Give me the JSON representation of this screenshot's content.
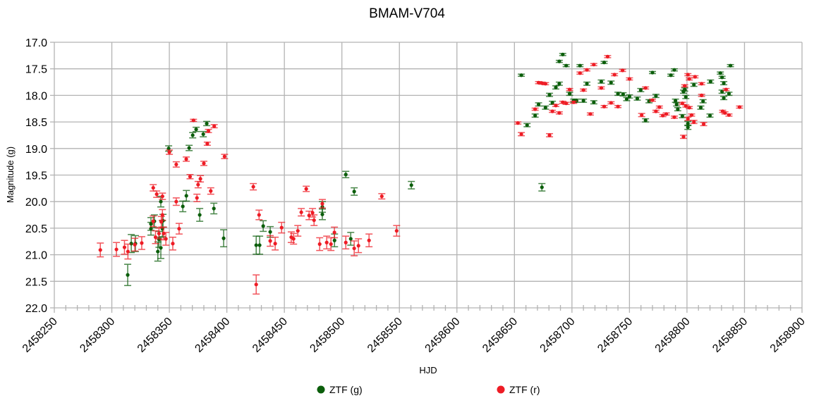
{
  "chart_data": {
    "type": "scatter",
    "title": "BMAM-V704",
    "xlabel": "HJD",
    "ylabel": "Magnitude (g)",
    "xlim": [
      2458250,
      2458900
    ],
    "ylim": [
      17.0,
      22.0
    ],
    "y_inverted": true,
    "grid": true,
    "legend_position": "bottom",
    "x_ticks": [
      "2458250",
      "2458300",
      "2458350",
      "2458400",
      "2458450",
      "2458500",
      "2458550",
      "2458600",
      "2458650",
      "2458700",
      "2458750",
      "2458800",
      "2458850",
      "2458900"
    ],
    "y_ticks": [
      "17.0",
      "17.5",
      "18.0",
      "18.5",
      "19.0",
      "19.5",
      "20.0",
      "20.5",
      "21.0",
      "21.5",
      "22.0"
    ],
    "series": [
      {
        "name": "ZTF (g)",
        "color": "#0b5e0b",
        "points": [
          [
            2458313.8,
            21.38,
            0.2
          ],
          [
            2458316.9,
            20.79,
            0.17
          ],
          [
            2458320.5,
            20.79,
            0.15
          ],
          [
            2458334,
            20.42,
            0.12
          ],
          [
            2458334,
            20.51,
            0.12
          ],
          [
            2458337,
            20.37,
            0.12
          ],
          [
            2458340,
            20.94,
            0.18
          ],
          [
            2458342.6,
            20.87,
            0.2
          ],
          [
            2458341,
            20.71,
            0.15
          ],
          [
            2458342.6,
            20.0,
            0.1
          ],
          [
            2458344.5,
            20.36,
            0.12
          ],
          [
            2458344,
            20.51,
            0.15
          ],
          [
            2458349.4,
            19.0,
            0.05
          ],
          [
            2458361.7,
            20.09,
            0.1
          ],
          [
            2458364.8,
            19.89,
            0.1
          ],
          [
            2458367.2,
            18.99,
            0.05
          ],
          [
            2458370.3,
            18.75,
            0.05
          ],
          [
            2458373.3,
            18.64,
            0.04
          ],
          [
            2458376.4,
            20.25,
            0.12
          ],
          [
            2458379.5,
            18.73,
            0.05
          ],
          [
            2458382.5,
            18.53,
            0.04
          ],
          [
            2458388.7,
            20.13,
            0.1
          ],
          [
            2458397.2,
            20.69,
            0.16
          ],
          [
            2458425.5,
            20.82,
            0.17
          ],
          [
            2458428.5,
            20.82,
            0.17
          ],
          [
            2458431.6,
            20.46,
            0.1
          ],
          [
            2458437.7,
            20.57,
            0.1
          ],
          [
            2458483,
            20.1,
            0.1
          ],
          [
            2458483,
            20.24,
            0.1
          ],
          [
            2458493.6,
            20.73,
            0.12
          ],
          [
            2458503.4,
            19.49,
            0.06
          ],
          [
            2458510.7,
            19.81,
            0.07
          ],
          [
            2458507.7,
            20.7,
            0.12
          ],
          [
            2458560.4,
            19.69,
            0.07
          ],
          [
            2458673.9,
            19.73,
            0.07
          ],
          [
            2458656,
            17.62,
            0.02
          ],
          [
            2458661,
            18.56,
            0.03
          ],
          [
            2458668,
            18.38,
            0.03
          ],
          [
            2458671,
            18.17,
            0.03
          ],
          [
            2458677,
            18.23,
            0.03
          ],
          [
            2458680.5,
            17.99,
            0.03
          ],
          [
            2458683,
            18.14,
            0.03
          ],
          [
            2458686,
            17.85,
            0.03
          ],
          [
            2458689,
            17.78,
            0.03
          ],
          [
            2458689,
            17.36,
            0.02
          ],
          [
            2458692,
            17.23,
            0.02
          ],
          [
            2458695,
            17.44,
            0.02
          ],
          [
            2458698,
            17.97,
            0.03
          ],
          [
            2458701.5,
            18.1,
            0.03
          ],
          [
            2458704,
            18.1,
            0.03
          ],
          [
            2458707,
            17.44,
            0.02
          ],
          [
            2458710,
            18.1,
            0.03
          ],
          [
            2458713,
            17.78,
            0.03
          ],
          [
            2458719,
            18.13,
            0.03
          ],
          [
            2458725.5,
            17.74,
            0.03
          ],
          [
            2458728,
            17.38,
            0.02
          ],
          [
            2458734,
            17.76,
            0.03
          ],
          [
            2458740,
            17.97,
            0.03
          ],
          [
            2458744.5,
            17.98,
            0.03
          ],
          [
            2458747.6,
            18.07,
            0.03
          ],
          [
            2458750,
            18.02,
            0.03
          ],
          [
            2458756.8,
            18.06,
            0.03
          ],
          [
            2458759.8,
            17.9,
            0.03
          ],
          [
            2458764,
            18.47,
            0.03
          ],
          [
            2458767,
            18.11,
            0.03
          ],
          [
            2458770,
            17.57,
            0.02
          ],
          [
            2458773,
            18.01,
            0.03
          ],
          [
            2458786,
            17.62,
            0.02
          ],
          [
            2458789,
            17.52,
            0.02
          ],
          [
            2458790,
            18.1,
            0.03
          ],
          [
            2458791,
            18.17,
            0.03
          ],
          [
            2458792,
            18.26,
            0.03
          ],
          [
            2458796,
            18.39,
            0.03
          ],
          [
            2458797,
            17.93,
            0.03
          ],
          [
            2458798,
            17.89,
            0.03
          ],
          [
            2458799,
            18.03,
            0.03
          ],
          [
            2458800.8,
            18.53,
            0.04
          ],
          [
            2458800.8,
            18.6,
            0.04
          ],
          [
            2458806,
            17.8,
            0.03
          ],
          [
            2458812,
            18.23,
            0.03
          ],
          [
            2458814,
            18.11,
            0.03
          ],
          [
            2458820,
            18.38,
            0.03
          ],
          [
            2458820.5,
            17.74,
            0.03
          ],
          [
            2458829,
            17.58,
            0.02
          ],
          [
            2458830.5,
            17.66,
            0.02
          ],
          [
            2458832,
            17.77,
            0.03
          ],
          [
            2458830.5,
            17.93,
            0.03
          ],
          [
            2458832,
            18.05,
            0.03
          ],
          [
            2458836.5,
            17.97,
            0.03
          ],
          [
            2458837.8,
            17.44,
            0.02
          ]
        ]
      },
      {
        "name": "ZTF (r)",
        "color": "#ee1c25",
        "points": [
          [
            2458290,
            20.91,
            0.13
          ],
          [
            2458304,
            20.9,
            0.13
          ],
          [
            2458311,
            20.86,
            0.13
          ],
          [
            2458314,
            20.94,
            0.14
          ],
          [
            2458320,
            20.81,
            0.12
          ],
          [
            2458326,
            20.78,
            0.12
          ],
          [
            2458336,
            19.74,
            0.06
          ],
          [
            2458339,
            19.86,
            0.06
          ],
          [
            2458344,
            19.9,
            0.06
          ],
          [
            2458336,
            20.37,
            0.1
          ],
          [
            2458338,
            20.67,
            0.12
          ],
          [
            2458341,
            20.6,
            0.1
          ],
          [
            2458343,
            20.38,
            0.1
          ],
          [
            2458344,
            20.25,
            0.1
          ],
          [
            2458345,
            20.6,
            0.12
          ],
          [
            2458347,
            20.7,
            0.12
          ],
          [
            2458350,
            19.07,
            0.04
          ],
          [
            2458353,
            20.79,
            0.12
          ],
          [
            2458356,
            19.3,
            0.05
          ],
          [
            2458356,
            20.0,
            0.07
          ],
          [
            2458358.5,
            20.51,
            0.1
          ],
          [
            2458364.7,
            19.2,
            0.04
          ],
          [
            2458368,
            19.53,
            0.04
          ],
          [
            2458371,
            18.47,
            0.02
          ],
          [
            2458374,
            19.93,
            0.07
          ],
          [
            2458375,
            19.68,
            0.06
          ],
          [
            2458377,
            19.57,
            0.06
          ],
          [
            2458380,
            19.28,
            0.04
          ],
          [
            2458383,
            18.91,
            0.03
          ],
          [
            2458384,
            18.67,
            0.03
          ],
          [
            2458386,
            19.8,
            0.06
          ],
          [
            2458389,
            18.58,
            0.03
          ],
          [
            2458398,
            19.15,
            0.04
          ],
          [
            2458423,
            19.72,
            0.06
          ],
          [
            2458425.5,
            21.56,
            0.18
          ],
          [
            2458428,
            20.25,
            0.09
          ],
          [
            2458437.7,
            20.74,
            0.1
          ],
          [
            2458442,
            20.79,
            0.12
          ],
          [
            2458447.6,
            20.49,
            0.1
          ],
          [
            2458456,
            20.67,
            0.1
          ],
          [
            2458458,
            20.7,
            0.1
          ],
          [
            2458461.7,
            20.55,
            0.1
          ],
          [
            2458464.7,
            20.2,
            0.07
          ],
          [
            2458469,
            19.76,
            0.05
          ],
          [
            2458471.5,
            20.26,
            0.08
          ],
          [
            2458474.5,
            20.21,
            0.08
          ],
          [
            2458475.8,
            20.35,
            0.1
          ],
          [
            2458480.7,
            20.8,
            0.12
          ],
          [
            2458483,
            20.04,
            0.08
          ],
          [
            2458486.8,
            20.77,
            0.12
          ],
          [
            2458490.5,
            20.8,
            0.12
          ],
          [
            2458493.5,
            20.58,
            0.1
          ],
          [
            2458503.4,
            20.77,
            0.12
          ],
          [
            2458510.7,
            20.88,
            0.14
          ],
          [
            2458514.4,
            20.83,
            0.13
          ],
          [
            2458523.6,
            20.73,
            0.12
          ],
          [
            2458534.7,
            19.9,
            0.05
          ],
          [
            2458547.6,
            20.55,
            0.1
          ],
          [
            2458653,
            18.52,
            0.02
          ],
          [
            2458656,
            18.73,
            0.03
          ],
          [
            2458668,
            18.26,
            0.02
          ],
          [
            2458671,
            17.76,
            0.02
          ],
          [
            2458674,
            17.77,
            0.02
          ],
          [
            2458677,
            17.78,
            0.02
          ],
          [
            2458680.5,
            18.75,
            0.03
          ],
          [
            2458683,
            18.3,
            0.02
          ],
          [
            2458686,
            18.19,
            0.02
          ],
          [
            2458689,
            18.33,
            0.02
          ],
          [
            2458692,
            18.13,
            0.02
          ],
          [
            2458695,
            18.15,
            0.02
          ],
          [
            2458698,
            17.89,
            0.02
          ],
          [
            2458701.5,
            18.13,
            0.02
          ],
          [
            2458707,
            17.58,
            0.02
          ],
          [
            2458710,
            17.9,
            0.02
          ],
          [
            2458713,
            17.52,
            0.02
          ],
          [
            2458716,
            18.35,
            0.02
          ],
          [
            2458719,
            17.42,
            0.02
          ],
          [
            2458725.5,
            17.86,
            0.02
          ],
          [
            2458728,
            18.21,
            0.02
          ],
          [
            2458731,
            17.27,
            0.02
          ],
          [
            2458734,
            18.14,
            0.02
          ],
          [
            2458737,
            17.61,
            0.02
          ],
          [
            2458740,
            18.21,
            0.02
          ],
          [
            2458744,
            17.53,
            0.02
          ],
          [
            2458750,
            17.69,
            0.02
          ],
          [
            2458760.6,
            18.37,
            0.03
          ],
          [
            2458764,
            17.86,
            0.02
          ],
          [
            2458770,
            18.09,
            0.02
          ],
          [
            2458773,
            18.3,
            0.02
          ],
          [
            2458776,
            18.22,
            0.02
          ],
          [
            2458779,
            18.38,
            0.02
          ],
          [
            2458782,
            18.35,
            0.02
          ],
          [
            2458789,
            18.41,
            0.02
          ],
          [
            2458796,
            18.15,
            0.02
          ],
          [
            2458797,
            18.78,
            0.03
          ],
          [
            2458798,
            17.82,
            0.02
          ],
          [
            2458799,
            18.2,
            0.02
          ],
          [
            2458800.8,
            17.61,
            0.02
          ],
          [
            2458800.8,
            18.44,
            0.03
          ],
          [
            2458802,
            17.69,
            0.02
          ],
          [
            2458802,
            18.23,
            0.02
          ],
          [
            2458804,
            18.37,
            0.02
          ],
          [
            2458806,
            18.5,
            0.03
          ],
          [
            2458807,
            17.65,
            0.02
          ],
          [
            2458812.7,
            17.78,
            0.02
          ],
          [
            2458812.7,
            18.0,
            0.02
          ],
          [
            2458814.5,
            18.54,
            0.03
          ],
          [
            2458831,
            18.3,
            0.02
          ],
          [
            2458833,
            18.33,
            0.02
          ],
          [
            2458834,
            17.89,
            0.02
          ],
          [
            2458836.5,
            18.37,
            0.02
          ],
          [
            2458845.7,
            18.22,
            0.02
          ]
        ]
      }
    ]
  }
}
